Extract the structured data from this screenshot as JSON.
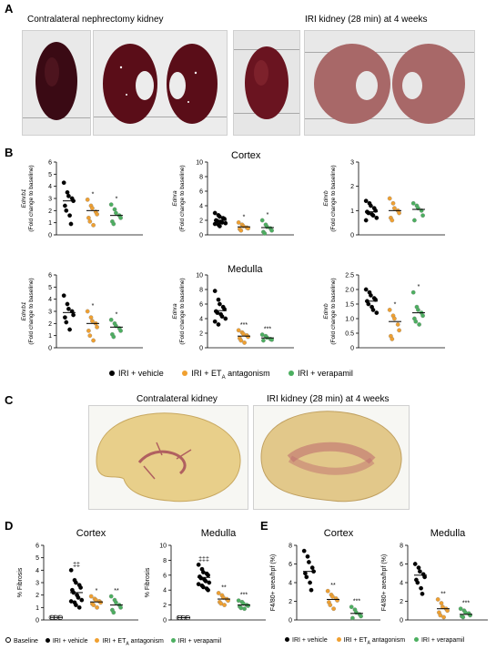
{
  "panels": {
    "a": "A",
    "b": "B",
    "c": "C",
    "d": "D",
    "e": "E"
  },
  "panel_a": {
    "left_caption": "Contralateral nephrectomy kidney",
    "right_caption": "IRI kidney (28 min) at 4 weeks"
  },
  "panel_b": {
    "cortex_title": "Cortex",
    "medulla_title": "Medulla",
    "y_sub": "(Fold change to baseline)"
  },
  "panel_c": {
    "left_caption": "Contralateral kidney",
    "right_caption": "IRI kidney (28 min) at 4 weeks"
  },
  "legend_b": [
    {
      "label": "IRI + vehicle",
      "color": "#000000"
    },
    {
      "label_main": "IRI + ET",
      "label_sub": "A",
      "label_tail": " antagonism",
      "color": "#f0a030"
    },
    {
      "label": "IRI + verapamil",
      "color": "#4caf60"
    }
  ],
  "legend_d": [
    {
      "label": "Baseline",
      "color": "#ffffff"
    },
    {
      "label": "IRI + vehicle",
      "color": "#000000"
    },
    {
      "label_main": "IRI + ET",
      "label_sub": "A",
      "label_tail": " antagonism",
      "color": "#f0a030"
    },
    {
      "label": "IRI + verapamil",
      "color": "#4caf60"
    }
  ],
  "legend_e": [
    {
      "label": "IRI + vehicle",
      "color": "#000000"
    },
    {
      "label_main": "IRI + ET",
      "label_sub": "A",
      "label_tail": " antagonism",
      "color": "#f0a030"
    },
    {
      "label": "IRI + verapamil",
      "color": "#4caf60"
    }
  ],
  "colors": {
    "vehicle": "#000000",
    "et": "#f0a030",
    "verapamil": "#4caf60",
    "baseline": "#ffffff"
  },
  "chart_data": [
    {
      "id": "b-cortex-ednrb1",
      "type": "scatter",
      "gene": "Ednrb1",
      "ylabel": "(Fold change to baseline)",
      "ylim": [
        0,
        6
      ],
      "yticks": [
        "0",
        "1",
        "2",
        "3",
        "4",
        "5",
        "6"
      ],
      "sig": [
        "",
        "*",
        "*"
      ],
      "groups": [
        [
          4.3,
          3.5,
          3.2,
          3.0,
          2.8,
          2.4,
          2.0,
          1.6,
          0.9
        ],
        [
          2.9,
          2.4,
          2.2,
          1.9,
          1.7,
          1.4,
          1.1,
          0.8
        ],
        [
          2.5,
          2.1,
          1.8,
          1.6,
          1.4,
          1.1,
          0.9
        ]
      ],
      "means": [
        2.8,
        2.0,
        1.6
      ]
    },
    {
      "id": "b-cortex-ednra",
      "type": "scatter",
      "gene": "Ednra",
      "ylabel": "(Fold change to baseline)",
      "ylim": [
        0,
        10
      ],
      "yticks": [
        "0",
        "2",
        "4",
        "6",
        "8",
        "10"
      ],
      "sig": [
        "",
        "*",
        "*"
      ],
      "groups": [
        [
          3.0,
          2.7,
          2.5,
          2.3,
          2.2,
          2.0,
          1.9,
          1.8,
          1.7,
          1.6,
          1.5,
          1.4,
          1.2
        ],
        [
          1.7,
          1.4,
          1.2,
          1.0,
          0.9,
          0.8,
          0.6
        ],
        [
          2.0,
          1.4,
          1.1,
          0.9,
          0.6,
          0.4,
          0.2
        ]
      ],
      "means": [
        2.0,
        1.1,
        1.0
      ]
    },
    {
      "id": "b-cortex-ednrb",
      "type": "scatter",
      "gene": "Ednrb",
      "ylabel": "(Fold change to baseline)",
      "ylim": [
        0,
        3
      ],
      "yticks": [
        "0",
        "1",
        "2",
        "3"
      ],
      "sig": [
        "",
        "",
        ""
      ],
      "groups": [
        [
          1.4,
          1.3,
          1.2,
          1.1,
          1.0,
          0.95,
          0.9,
          0.85,
          0.8,
          0.7,
          0.6
        ],
        [
          1.5,
          1.3,
          1.1,
          1.0,
          0.9,
          0.7,
          0.6
        ],
        [
          1.3,
          1.2,
          1.1,
          1.0,
          0.8,
          0.6
        ]
      ],
      "means": [
        0.95,
        1.0,
        1.05
      ]
    },
    {
      "id": "b-medulla-ednrb1",
      "type": "scatter",
      "gene": "Ednrb1",
      "ylabel": "(Fold change to baseline)",
      "ylim": [
        0,
        6
      ],
      "yticks": [
        "0",
        "1",
        "2",
        "3",
        "4",
        "5",
        "6"
      ],
      "sig": [
        "",
        "*",
        "*"
      ],
      "groups": [
        [
          4.3,
          3.6,
          3.2,
          3.0,
          2.7,
          2.5,
          2.1,
          1.5
        ],
        [
          3.0,
          2.5,
          2.2,
          2.0,
          1.7,
          1.4,
          1.0,
          0.6
        ],
        [
          2.3,
          2.0,
          1.8,
          1.6,
          1.4,
          1.1,
          0.9
        ]
      ],
      "means": [
        2.9,
        2.0,
        1.7
      ]
    },
    {
      "id": "b-medulla-ednra",
      "type": "scatter",
      "gene": "Ednra",
      "ylabel": "(Fold change to baseline)",
      "ylim": [
        0,
        10
      ],
      "yticks": [
        "0",
        "2",
        "4",
        "6",
        "8",
        "10"
      ],
      "sig": [
        "",
        "***",
        "***"
      ],
      "groups": [
        [
          7.8,
          6.6,
          6.0,
          5.6,
          5.3,
          5.0,
          4.8,
          4.6,
          4.3,
          4.0,
          3.6,
          3.2
        ],
        [
          2.4,
          2.1,
          1.9,
          1.7,
          1.5,
          1.3,
          1.0,
          0.7
        ],
        [
          1.8,
          1.6,
          1.4,
          1.2,
          1.1,
          1.0
        ]
      ],
      "means": [
        5.1,
        1.6,
        1.35
      ]
    },
    {
      "id": "b-medulla-ednrb",
      "type": "scatter",
      "gene": "Ednrb",
      "ylabel": "(Fold change to baseline)",
      "ylim": [
        0,
        2.5
      ],
      "yticks": [
        "0",
        "0.5",
        "1.0",
        "1.5",
        "2.0",
        "2.5"
      ],
      "sig": [
        "",
        "*",
        "*"
      ],
      "groups": [
        [
          2.0,
          1.9,
          1.8,
          1.7,
          1.65,
          1.6,
          1.5,
          1.4,
          1.3,
          1.2
        ],
        [
          1.3,
          1.1,
          1.0,
          0.8,
          0.6,
          0.4,
          0.3
        ],
        [
          1.9,
          1.4,
          1.3,
          1.2,
          1.1,
          1.0,
          0.9,
          0.8
        ]
      ],
      "means": [
        1.6,
        0.9,
        1.2
      ]
    },
    {
      "id": "d-cortex",
      "type": "scatter",
      "title": "Cortex",
      "ylabel": "% Fibrosis",
      "ylim": [
        0,
        6
      ],
      "yticks": [
        "0",
        "1",
        "2",
        "3",
        "4",
        "5",
        "6"
      ],
      "sig": [
        "",
        "‡‡",
        "*",
        "**"
      ],
      "groups": [
        [
          0.2,
          0.2,
          0.2,
          0.2,
          0.2,
          0.2
        ],
        [
          4.0,
          3.2,
          3.0,
          2.8,
          2.6,
          2.4,
          2.2,
          2.0,
          1.8,
          1.6,
          1.5,
          1.4,
          1.2,
          1.0
        ],
        [
          1.9,
          1.7,
          1.6,
          1.5,
          1.4,
          1.3,
          1.2,
          1.0
        ],
        [
          1.9,
          1.6,
          1.4,
          1.2,
          1.0,
          0.8,
          0.6
        ]
      ],
      "means": [
        0.2,
        2.2,
        1.45,
        1.2
      ]
    },
    {
      "id": "d-medulla",
      "type": "scatter",
      "title": "Medulla",
      "ylabel": "% Fibrosis",
      "ylim": [
        0,
        10
      ],
      "yticks": [
        "0",
        "2",
        "4",
        "6",
        "8",
        "10"
      ],
      "sig": [
        "",
        "‡‡‡",
        "**",
        "***"
      ],
      "groups": [
        [
          0.3,
          0.3,
          0.3,
          0.3,
          0.3,
          0.3
        ],
        [
          7.4,
          6.8,
          6.4,
          6.2,
          6.0,
          5.8,
          5.6,
          5.4,
          5.2,
          5.0,
          4.8,
          4.6,
          4.4,
          4.2,
          4.0
        ],
        [
          3.6,
          3.3,
          3.0,
          2.8,
          2.6,
          2.4,
          2.2,
          2.0
        ],
        [
          2.6,
          2.4,
          2.2,
          2.0,
          1.9,
          1.8,
          1.6,
          1.5
        ]
      ],
      "means": [
        0.3,
        5.7,
        2.8,
        2.0
      ]
    },
    {
      "id": "e-cortex",
      "type": "scatter",
      "title": "Cortex",
      "ylabel": "F4/80+ area/hpf (%)",
      "ylim": [
        0,
        8
      ],
      "yticks": [
        "0",
        "2",
        "4",
        "6",
        "8"
      ],
      "sig": [
        "",
        "**",
        "***"
      ],
      "groups": [
        [
          7.4,
          6.8,
          6.2,
          5.6,
          5.2,
          5.0,
          4.6,
          4.0,
          3.2
        ],
        [
          3.1,
          2.7,
          2.5,
          2.3,
          2.1,
          1.9,
          1.6,
          1.2
        ],
        [
          1.4,
          1.1,
          0.8,
          0.6,
          0.4,
          0.2
        ]
      ],
      "means": [
        5.2,
        2.2,
        0.7
      ]
    },
    {
      "id": "e-medulla",
      "type": "scatter",
      "title": "Medulla",
      "ylabel": "F4/80+ area/hpf (%)",
      "ylim": [
        0,
        8
      ],
      "yticks": [
        "0",
        "2",
        "4",
        "6",
        "8"
      ],
      "sig": [
        "",
        "**",
        "***"
      ],
      "groups": [
        [
          6.0,
          5.6,
          5.2,
          4.9,
          4.6,
          4.3,
          4.0,
          3.4,
          2.8
        ],
        [
          2.2,
          1.8,
          1.4,
          1.2,
          1.0,
          0.8,
          0.5,
          0.3
        ],
        [
          1.2,
          1.0,
          0.8,
          0.7,
          0.5,
          0.4,
          0.3
        ]
      ],
      "means": [
        4.8,
        1.2,
        0.6
      ]
    }
  ]
}
